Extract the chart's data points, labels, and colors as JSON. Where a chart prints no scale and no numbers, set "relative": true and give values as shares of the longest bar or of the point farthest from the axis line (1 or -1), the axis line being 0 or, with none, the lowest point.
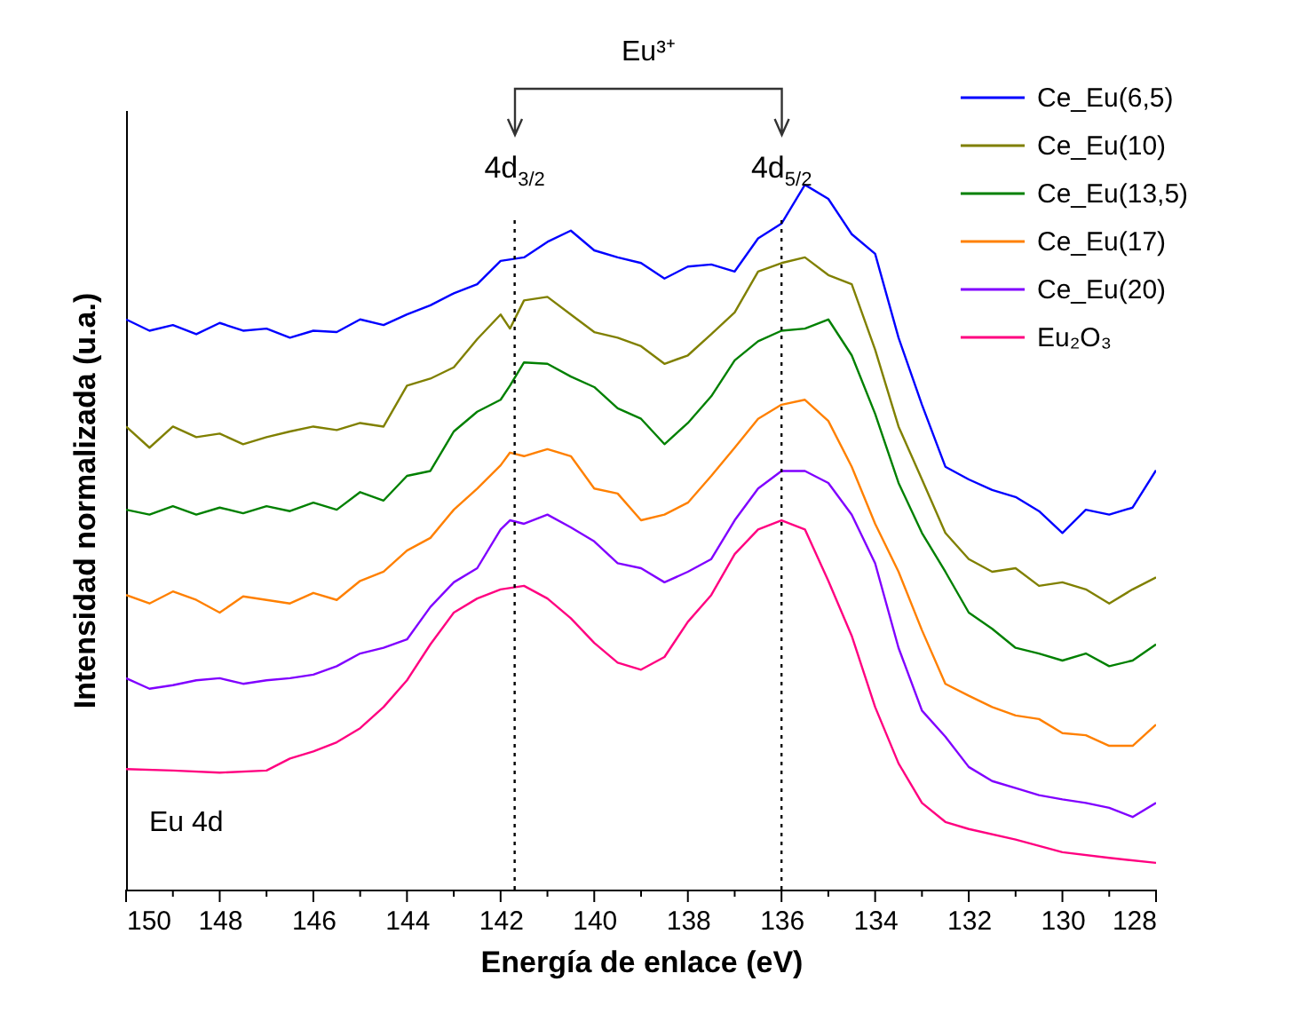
{
  "chart_data": {
    "type": "line",
    "relative": true,
    "xlabel": "Energía de enlace (eV)",
    "ylabel": "Intensidad normalizada (u.a.)",
    "xlim": [
      150,
      128
    ],
    "xticks": [
      150,
      {
        "value": 149,
        "label": null
      },
      148,
      {
        "value": 147,
        "label": null
      },
      146,
      {
        "value": 145,
        "label": null
      },
      144,
      {
        "value": 143,
        "label": null
      },
      142,
      {
        "value": 141,
        "label": null
      },
      140,
      {
        "value": 139,
        "label": null
      },
      138,
      {
        "value": 137,
        "label": null
      },
      136,
      {
        "value": 135,
        "label": null
      },
      134,
      {
        "value": 133,
        "label": null
      },
      132,
      {
        "value": 131,
        "label": null
      },
      130,
      {
        "value": 129,
        "label": null
      },
      128
    ],
    "legend": "top right",
    "line_style": "solid",
    "series": [
      {
        "name": "Ce_Eu(6,5)",
        "color": "#0000ff",
        "x": [
          150,
          149.5,
          149,
          148.5,
          148,
          147.5,
          147,
          146.5,
          146,
          145.5,
          145,
          144.5,
          144,
          143.5,
          143,
          142.5,
          142,
          141.5,
          141,
          140.5,
          140,
          139.5,
          139,
          138.5,
          138,
          137.5,
          137,
          136.5,
          136,
          135.5,
          135,
          134.5,
          134,
          133.5,
          133,
          132.5,
          132,
          131.5,
          131,
          130.5,
          130,
          129.5,
          129,
          128.5,
          128
        ],
        "values": [
          0.809,
          0.793,
          0.801,
          0.788,
          0.804,
          0.793,
          0.796,
          0.783,
          0.793,
          0.791,
          0.809,
          0.801,
          0.816,
          0.829,
          0.846,
          0.859,
          0.892,
          0.897,
          0.919,
          0.935,
          0.907,
          0.897,
          0.889,
          0.867,
          0.884,
          0.887,
          0.877,
          0.924,
          0.945,
          1.0,
          0.98,
          0.93,
          0.902,
          0.783,
          0.688,
          0.6,
          0.582,
          0.567,
          0.557,
          0.537,
          0.506,
          0.539,
          0.532,
          0.542,
          0.595
        ]
      },
      {
        "name": "Ce_Eu(10)",
        "color": "#808000",
        "x": [
          150,
          149.5,
          149,
          148.5,
          148,
          147.5,
          147,
          146.5,
          146,
          145.5,
          145,
          144.5,
          144,
          143.5,
          143,
          142.5,
          142,
          141.8,
          141.5,
          141,
          140.5,
          140,
          139.5,
          139,
          138.5,
          138,
          137.5,
          137,
          136.5,
          136,
          135.5,
          135,
          134.5,
          134,
          133.5,
          133,
          132.5,
          132,
          131.5,
          131,
          130.5,
          130,
          129.5,
          129,
          128.5,
          128
        ],
        "values": [
          0.657,
          0.627,
          0.657,
          0.642,
          0.647,
          0.632,
          0.642,
          0.65,
          0.657,
          0.652,
          0.662,
          0.657,
          0.715,
          0.725,
          0.741,
          0.781,
          0.816,
          0.796,
          0.836,
          0.841,
          0.816,
          0.791,
          0.783,
          0.771,
          0.746,
          0.758,
          0.788,
          0.819,
          0.877,
          0.889,
          0.897,
          0.872,
          0.859,
          0.766,
          0.657,
          0.582,
          0.506,
          0.469,
          0.451,
          0.456,
          0.431,
          0.436,
          0.426,
          0.406,
          0.426,
          0.443
        ]
      },
      {
        "name": "Ce_Eu(13,5)",
        "color": "#008000",
        "x": [
          150,
          149.5,
          149,
          148.5,
          148,
          147.5,
          147,
          146.5,
          146,
          145.5,
          145,
          144.5,
          144,
          143.5,
          143,
          142.5,
          142,
          141.8,
          141.5,
          141,
          140.5,
          140,
          139.5,
          139,
          138.5,
          138,
          137.5,
          137,
          136.5,
          136,
          135.5,
          135,
          134.5,
          134,
          133.5,
          133,
          132.5,
          132,
          131.5,
          131,
          130.5,
          130,
          129.5,
          129,
          128.5,
          128
        ],
        "values": [
          0.539,
          0.532,
          0.544,
          0.532,
          0.542,
          0.534,
          0.544,
          0.537,
          0.549,
          0.539,
          0.564,
          0.552,
          0.587,
          0.594,
          0.65,
          0.678,
          0.695,
          0.715,
          0.748,
          0.746,
          0.728,
          0.713,
          0.683,
          0.668,
          0.632,
          0.662,
          0.7,
          0.751,
          0.778,
          0.793,
          0.796,
          0.809,
          0.758,
          0.675,
          0.577,
          0.506,
          0.451,
          0.393,
          0.37,
          0.343,
          0.335,
          0.325,
          0.335,
          0.317,
          0.325,
          0.348
        ]
      },
      {
        "name": "Ce_Eu(17)",
        "color": "#ff8000",
        "x": [
          150,
          149.5,
          149,
          148.5,
          148,
          147.5,
          147,
          146.5,
          146,
          145.5,
          145,
          144.5,
          144,
          143.5,
          143,
          142.5,
          142,
          141.8,
          141.5,
          141,
          140.5,
          140,
          139.5,
          139,
          138.5,
          138,
          137.5,
          137,
          136.5,
          136,
          135.5,
          135,
          134.5,
          134,
          133.5,
          133,
          132.5,
          132,
          131.5,
          131,
          130.5,
          130,
          129.5,
          129,
          128.5,
          128
        ],
        "values": [
          0.418,
          0.406,
          0.423,
          0.411,
          0.393,
          0.416,
          0.411,
          0.406,
          0.421,
          0.411,
          0.438,
          0.451,
          0.481,
          0.499,
          0.539,
          0.569,
          0.602,
          0.62,
          0.615,
          0.625,
          0.615,
          0.569,
          0.562,
          0.524,
          0.532,
          0.549,
          0.587,
          0.627,
          0.668,
          0.688,
          0.695,
          0.665,
          0.6,
          0.519,
          0.451,
          0.368,
          0.292,
          0.275,
          0.259,
          0.247,
          0.242,
          0.222,
          0.219,
          0.204,
          0.204,
          0.234
        ]
      },
      {
        "name": "Ce_Eu(20)",
        "color": "#8000ff",
        "x": [
          150,
          149.5,
          149,
          148.5,
          148,
          147.5,
          147,
          146.5,
          146,
          145.5,
          145,
          144.5,
          144,
          143.5,
          143,
          142.5,
          142,
          141.8,
          141.5,
          141,
          140.5,
          140,
          139.5,
          139,
          138.5,
          138,
          137.5,
          137,
          136.5,
          136,
          135.5,
          135,
          134.5,
          134,
          133.5,
          133,
          132.5,
          132,
          131.5,
          131,
          130.5,
          130,
          129.5,
          129,
          128.5,
          128
        ],
        "values": [
          0.3,
          0.285,
          0.29,
          0.297,
          0.3,
          0.292,
          0.297,
          0.3,
          0.305,
          0.317,
          0.335,
          0.343,
          0.355,
          0.401,
          0.436,
          0.456,
          0.511,
          0.524,
          0.519,
          0.532,
          0.514,
          0.494,
          0.463,
          0.456,
          0.436,
          0.451,
          0.469,
          0.524,
          0.569,
          0.594,
          0.594,
          0.577,
          0.532,
          0.463,
          0.343,
          0.254,
          0.217,
          0.174,
          0.154,
          0.144,
          0.134,
          0.128,
          0.123,
          0.116,
          0.103,
          0.123
        ]
      },
      {
        "name": "Eu₂O₃",
        "color": "#ff0080",
        "x": [
          150,
          149,
          148,
          147,
          146.5,
          146,
          145.5,
          145,
          144.5,
          144,
          143.5,
          143,
          142.5,
          142,
          141.5,
          141,
          140.5,
          140,
          139.5,
          139,
          138.5,
          138,
          137.5,
          137,
          136.5,
          136,
          135.5,
          135,
          134.5,
          134,
          133.5,
          133,
          132.5,
          132,
          131,
          130,
          129,
          128
        ],
        "values": [
          0.171,
          0.169,
          0.166,
          0.169,
          0.186,
          0.196,
          0.209,
          0.229,
          0.259,
          0.297,
          0.348,
          0.393,
          0.413,
          0.426,
          0.431,
          0.413,
          0.385,
          0.35,
          0.322,
          0.312,
          0.33,
          0.38,
          0.418,
          0.476,
          0.511,
          0.524,
          0.511,
          0.438,
          0.36,
          0.259,
          0.179,
          0.123,
          0.096,
          0.086,
          0.071,
          0.053,
          0.045,
          0.038
        ]
      }
    ],
    "ref_lines": [
      {
        "axis": "x",
        "value": 141.7,
        "label": "4d$_{3/2}$",
        "line_style": "dotted",
        "color": "#000000"
      },
      {
        "axis": "x",
        "value": 136.0,
        "label": "4d$_{5/2}$",
        "line_style": "dotted",
        "color": "#000000"
      }
    ],
    "annotations": [
      "Eu 4d",
      "Eu³⁺"
    ]
  }
}
